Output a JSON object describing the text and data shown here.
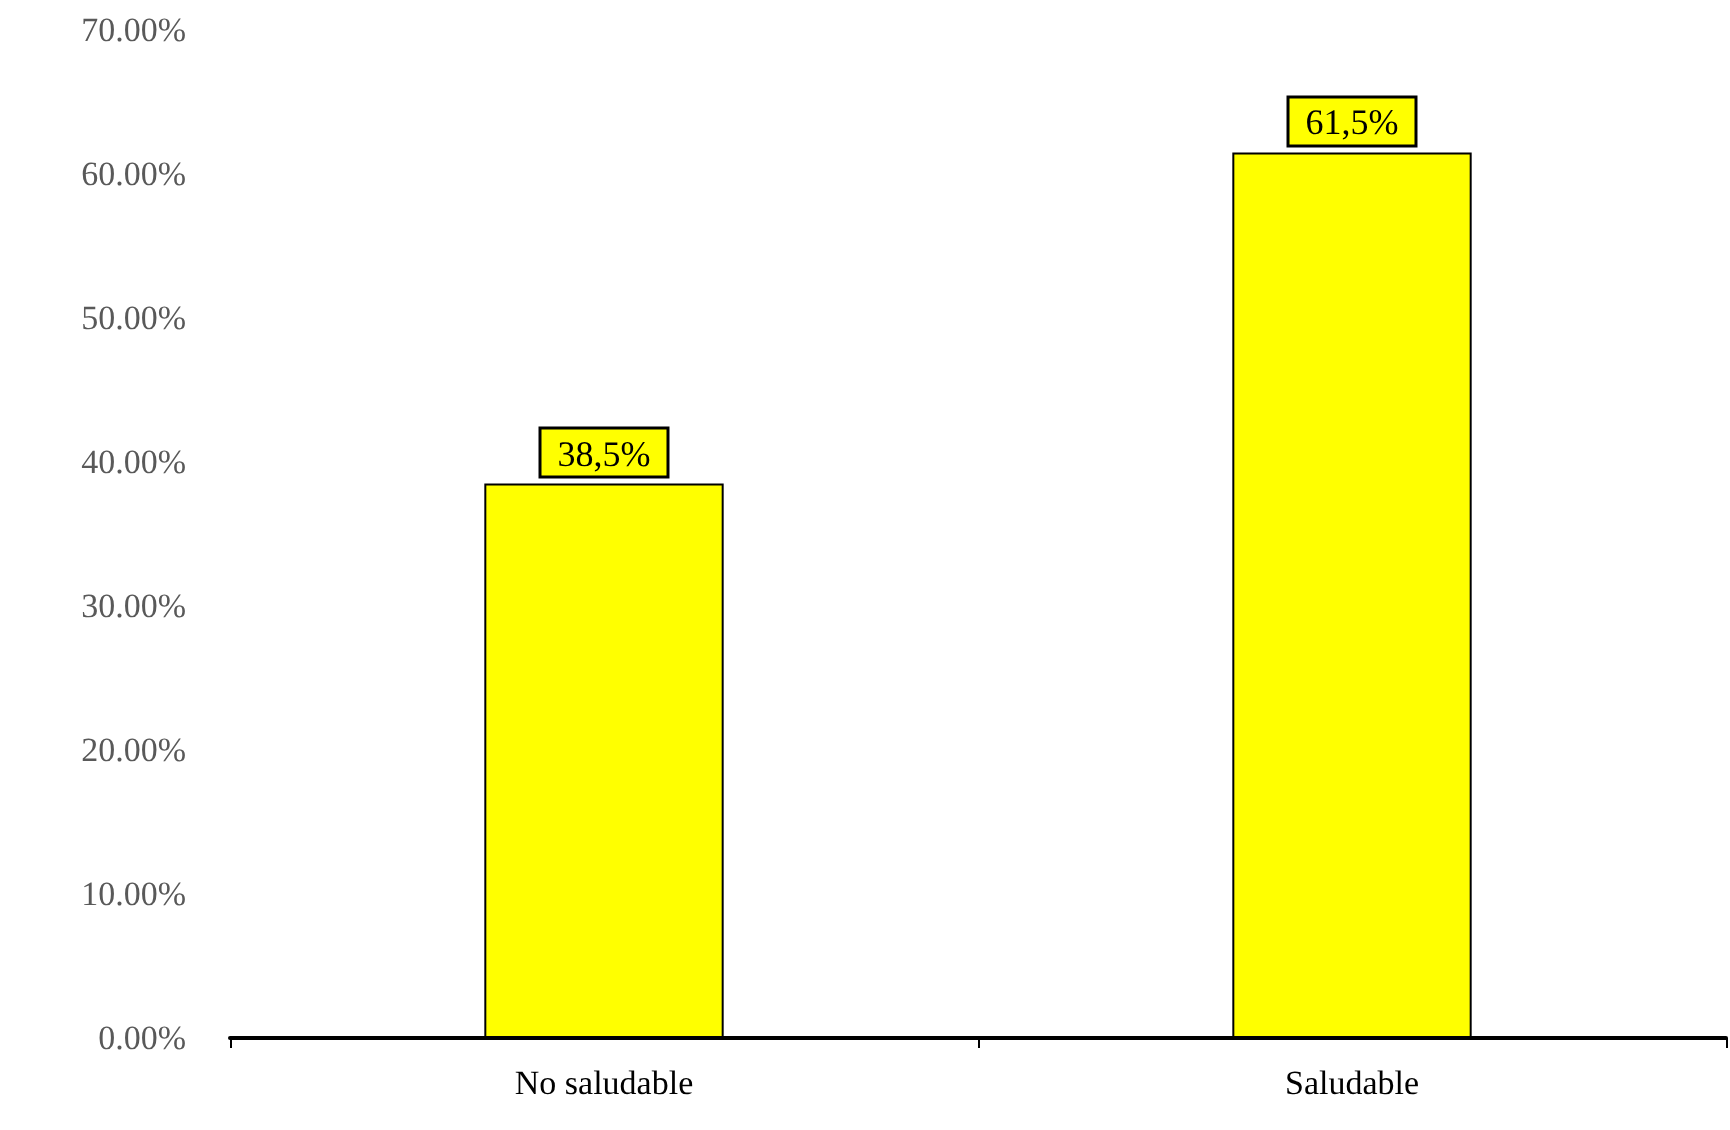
{
  "chart_data": {
    "type": "bar",
    "categories": [
      "No saludable",
      "Saludable"
    ],
    "values": [
      38.5,
      61.5
    ],
    "color": "#ffff00",
    "value_labels": [
      "38,5%",
      "61,5%"
    ],
    "ylim": [
      0,
      70
    ],
    "yticks": [
      {
        "value": 0,
        "label": "0.00%"
      },
      {
        "value": 10,
        "label": "10.00%"
      },
      {
        "value": 20,
        "label": "20.00%"
      },
      {
        "value": 30,
        "label": "30.00%"
      },
      {
        "value": 40,
        "label": "40.00%"
      },
      {
        "value": 50,
        "label": "50.00%"
      },
      {
        "value": 60,
        "label": "60.00%"
      },
      {
        "value": 70,
        "label": "70.00%"
      }
    ]
  }
}
